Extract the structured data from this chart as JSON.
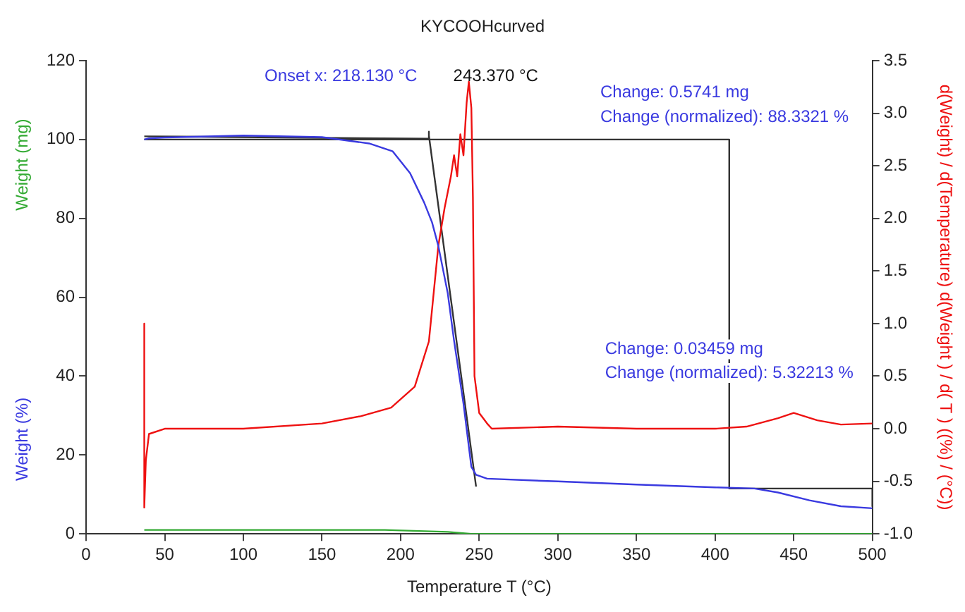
{
  "chart_data": {
    "type": "line",
    "title": "KYCOOHcurved",
    "xlabel": "Temperature T (°C)",
    "ylabel": "Weight (%)",
    "y2label": "d(Weight) / d(Temperature) d(Weight ) / d( T ) ((%) / (°C))",
    "xlim": [
      0,
      500
    ],
    "xticks": [
      0,
      50,
      100,
      150,
      200,
      250,
      300,
      350,
      400,
      450,
      500
    ],
    "ylim": [
      0,
      120
    ],
    "yticks": [
      0,
      20,
      40,
      60,
      80,
      100,
      120
    ],
    "y2lim": [
      -1.0,
      3.5
    ],
    "y2ticks": [
      {
        "value": -1,
        "label": "-1.0"
      },
      -0.5,
      {
        "value": 0,
        "label": "0.0"
      },
      0.5,
      {
        "value": 1,
        "label": "1.0"
      },
      1.5,
      {
        "value": 2,
        "label": "2.0"
      },
      2.5,
      {
        "value": 3,
        "label": "3.0"
      },
      3.5
    ],
    "grid": false,
    "legend": false,
    "marker": "none",
    "series": [
      {
        "color": "#3a3ae0",
        "x": [
          37,
          40,
          50,
          100,
          150,
          180,
          195,
          206,
          215,
          220,
          224,
          230,
          234,
          240,
          245,
          248,
          255,
          300,
          350,
          400,
          425,
          440,
          460,
          480,
          500
        ],
        "values": [
          100,
          100.3,
          100.5,
          101,
          100.6,
          99,
          97,
          91.5,
          84,
          79,
          73,
          61,
          49,
          33,
          17,
          15,
          14,
          13.3,
          12.5,
          11.8,
          11.5,
          10.5,
          8.5,
          7,
          6.5
        ]
      },
      {
        "color": "#ee1111",
        "axis": "y2",
        "x": [
          37,
          37,
          38,
          40,
          50,
          100,
          150,
          175,
          194,
          209,
          218,
          224,
          228,
          232,
          234,
          236,
          238,
          240,
          242,
          243.4,
          245,
          246,
          247,
          250,
          255,
          258,
          300,
          350,
          400,
          420,
          440,
          450,
          465,
          480,
          500
        ],
        "values": [
          1.0,
          -0.75,
          -0.3,
          -0.05,
          0,
          0,
          0.05,
          0.12,
          0.2,
          0.4,
          0.83,
          1.74,
          2.1,
          2.4,
          2.6,
          2.4,
          2.8,
          2.6,
          3.1,
          3.3,
          3.05,
          2.2,
          0.5,
          0.15,
          0.05,
          0,
          0.02,
          0,
          0,
          0.02,
          0.1,
          0.15,
          0.08,
          0.04,
          0.05
        ]
      },
      {
        "color": "#33aa33",
        "x": [
          37,
          190,
          230,
          245,
          260,
          500
        ],
        "values": [
          1,
          1,
          0.5,
          0,
          0,
          0
        ]
      },
      {
        "color": "#333333",
        "x": [
          37,
          409,
          409,
          500,
          500
        ],
        "values": [
          100,
          100,
          11.5,
          11.5,
          7
        ]
      },
      {
        "color": "#333333",
        "x": [
          37,
          218,
          218,
          218,
          248
        ],
        "values": [
          100.8,
          100.2,
          102,
          101,
          12
        ]
      }
    ],
    "annotations": [
      "Weight (mg)",
      "Onset x: 218.130 °C",
      "243.370 °C",
      "Change: 0.5741 mg",
      "Change (normalized): 88.3321 %",
      "Change: 0.03459 mg",
      "Change (normalized): 5.32213 %"
    ]
  }
}
